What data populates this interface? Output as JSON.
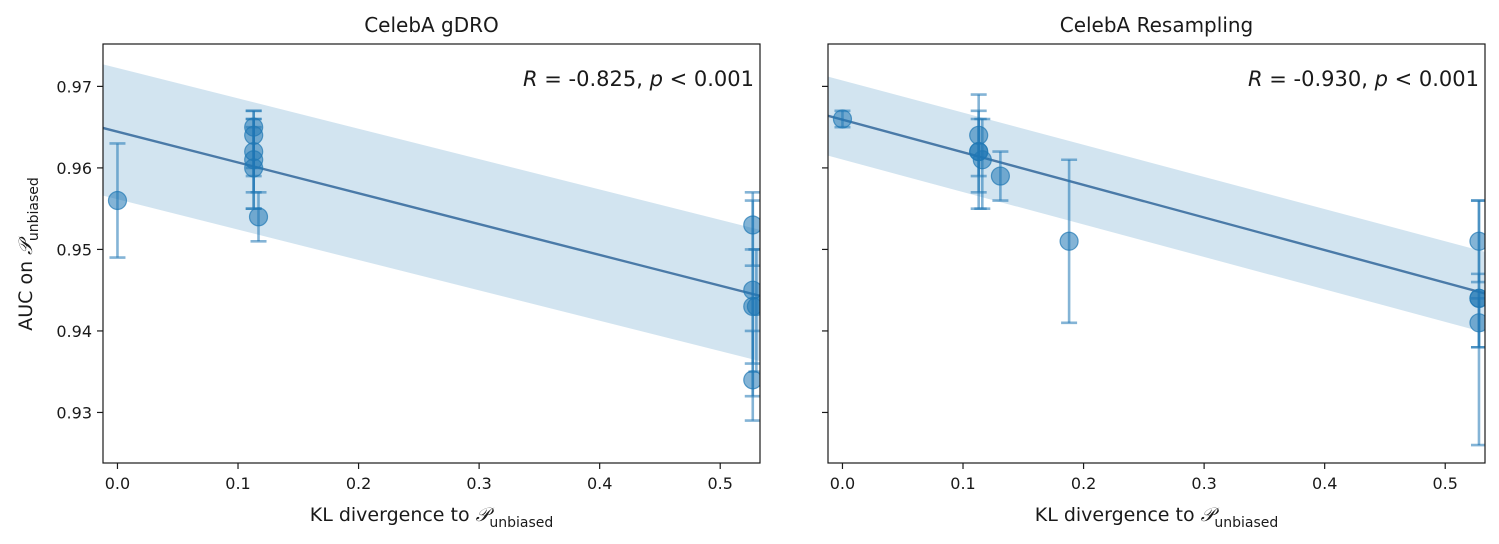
{
  "chart_data": [
    {
      "type": "scatter",
      "title": "CelebA gDRO",
      "xlabel": "KL divergence to",
      "xlabel_math": "𝒫",
      "xlabel_sub": "unbiased",
      "ylabel": "AUC on",
      "ylabel_math": "𝒫",
      "ylabel_sub": "unbiased",
      "xlim": [
        -0.012,
        0.533
      ],
      "ylim": [
        0.9238,
        0.9752
      ],
      "xticks": [
        0.0,
        0.1,
        0.2,
        0.3,
        0.4,
        0.5
      ],
      "xtick_labels": [
        "0.0",
        "0.1",
        "0.2",
        "0.3",
        "0.4",
        "0.5"
      ],
      "yticks": [
        0.93,
        0.94,
        0.95,
        0.96,
        0.97
      ],
      "ytick_labels": [
        "0.93",
        "0.94",
        "0.95",
        "0.96",
        "0.97"
      ],
      "show_ytick_labels": true,
      "annotation": {
        "r_symbol": "R",
        "r_text": " = -0.825, ",
        "p_symbol": "p",
        "p_text": " < 0.001"
      },
      "fit": {
        "x": [
          -0.012,
          0.533
        ],
        "y": [
          0.9649,
          0.9443
        ]
      },
      "band": {
        "upper": [
          0.9727,
          0.9524
        ],
        "lower": [
          0.9566,
          0.9363
        ]
      },
      "points": [
        {
          "x": 0.0,
          "y": 0.956,
          "lo": 0.949,
          "hi": 0.963
        },
        {
          "x": 0.113,
          "y": 0.965,
          "lo": 0.96,
          "hi": 0.967
        },
        {
          "x": 0.113,
          "y": 0.964,
          "lo": 0.959,
          "hi": 0.967
        },
        {
          "x": 0.113,
          "y": 0.962,
          "lo": 0.957,
          "hi": 0.966
        },
        {
          "x": 0.113,
          "y": 0.961,
          "lo": 0.955,
          "hi": 0.966
        },
        {
          "x": 0.113,
          "y": 0.96,
          "lo": 0.955,
          "hi": 0.965
        },
        {
          "x": 0.117,
          "y": 0.954,
          "lo": 0.951,
          "hi": 0.957
        },
        {
          "x": 0.527,
          "y": 0.953,
          "lo": 0.948,
          "hi": 0.957
        },
        {
          "x": 0.527,
          "y": 0.945,
          "lo": 0.936,
          "hi": 0.956
        },
        {
          "x": 0.527,
          "y": 0.943,
          "lo": 0.932,
          "hi": 0.95
        },
        {
          "x": 0.53,
          "y": 0.943,
          "lo": 0.935,
          "hi": 0.95
        },
        {
          "x": 0.527,
          "y": 0.934,
          "lo": 0.929,
          "hi": 0.94
        }
      ]
    },
    {
      "type": "scatter",
      "title": "CelebA Resampling",
      "xlabel": "KL divergence to",
      "xlabel_math": "𝒫",
      "xlabel_sub": "unbiased",
      "xlim": [
        -0.012,
        0.533
      ],
      "ylim": [
        0.9238,
        0.9752
      ],
      "xticks": [
        0.0,
        0.1,
        0.2,
        0.3,
        0.4,
        0.5
      ],
      "xtick_labels": [
        "0.0",
        "0.1",
        "0.2",
        "0.3",
        "0.4",
        "0.5"
      ],
      "yticks": [
        0.93,
        0.94,
        0.95,
        0.96,
        0.97
      ],
      "show_ytick_labels": false,
      "annotation": {
        "r_symbol": "R",
        "r_text": " = -0.930, ",
        "p_symbol": "p",
        "p_text": " < 0.001"
      },
      "fit": {
        "x": [
          -0.012,
          0.533
        ],
        "y": [
          0.9664,
          0.9446
        ]
      },
      "band": {
        "upper": [
          0.9712,
          0.9497
        ],
        "lower": [
          0.9615,
          0.9398
        ]
      },
      "points": [
        {
          "x": 0.0,
          "y": 0.966,
          "lo": 0.965,
          "hi": 0.967
        },
        {
          "x": 0.113,
          "y": 0.964,
          "lo": 0.959,
          "hi": 0.969
        },
        {
          "x": 0.113,
          "y": 0.962,
          "lo": 0.957,
          "hi": 0.967
        },
        {
          "x": 0.116,
          "y": 0.961,
          "lo": 0.955,
          "hi": 0.966
        },
        {
          "x": 0.113,
          "y": 0.962,
          "lo": 0.955,
          "hi": 0.966
        },
        {
          "x": 0.131,
          "y": 0.959,
          "lo": 0.956,
          "hi": 0.962
        },
        {
          "x": 0.188,
          "y": 0.951,
          "lo": 0.941,
          "hi": 0.961
        },
        {
          "x": 0.528,
          "y": 0.951,
          "lo": 0.946,
          "hi": 0.956
        },
        {
          "x": 0.528,
          "y": 0.944,
          "lo": 0.938,
          "hi": 0.956
        },
        {
          "x": 0.528,
          "y": 0.944,
          "lo": 0.926,
          "hi": 0.947
        },
        {
          "x": 0.528,
          "y": 0.941,
          "lo": 0.938,
          "hi": 0.944
        }
      ]
    }
  ]
}
